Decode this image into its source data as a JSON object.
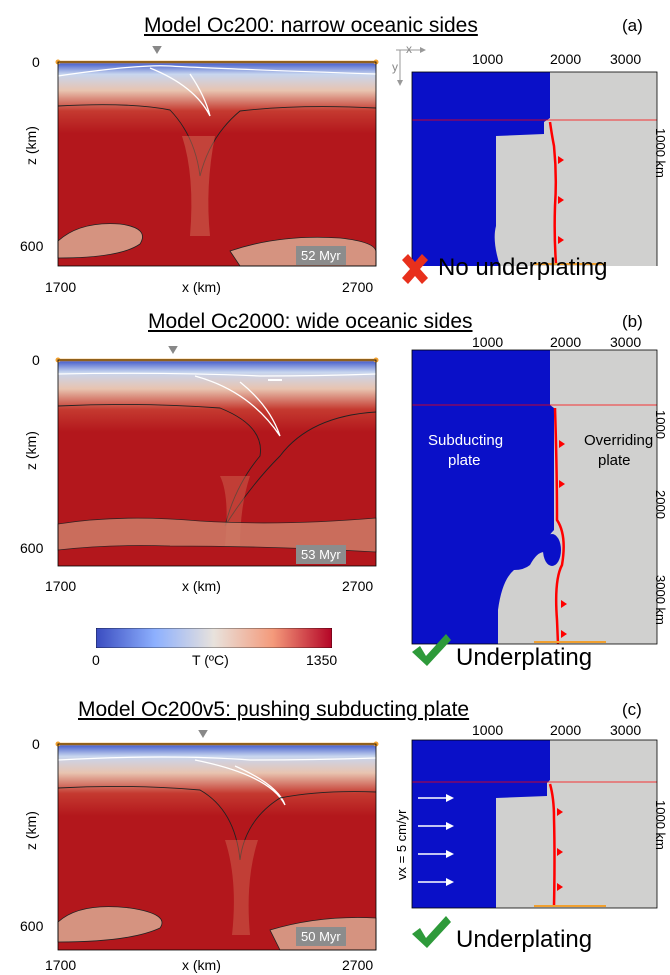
{
  "panel_a": {
    "title": "Model Oc200: narrow oceanic sides",
    "letter": "(a)",
    "time": "52 Myr",
    "verdict": "No underplating",
    "verdict_icon": "red-cross-icon"
  },
  "panel_b": {
    "title": "Model Oc2000: wide oceanic sides",
    "letter": "(b)",
    "time": "53 Myr",
    "verdict": "Underplating",
    "verdict_icon": "green-check-icon",
    "subducting_label_1": "Subducting",
    "subducting_label_2": "plate",
    "overriding_label_1": "Overriding",
    "overriding_label_2": "plate"
  },
  "panel_c": {
    "title": "Model Oc200v5: pushing subducting plate",
    "letter": "(c)",
    "time": "50 Myr",
    "verdict": "Underplating",
    "verdict_icon": "green-check-icon",
    "velocity_label": "vx = 5 cm/yr"
  },
  "axes": {
    "z_label": "z (km)",
    "x_label": "x (km)",
    "x_ticks": [
      "1700",
      "2700"
    ],
    "z_ticks": [
      "0",
      "600"
    ],
    "map_x_ticks": [
      "1000",
      "2000",
      "3000"
    ],
    "map_side_a": "1000 km",
    "map_side_b": [
      "1000",
      "2000",
      "3000 km"
    ],
    "map_side_c": "1000 km",
    "map_axis_x": "x",
    "map_axis_y": "y"
  },
  "colorbar": {
    "min": "0",
    "max": "1350",
    "label": "T (ºC)"
  },
  "colors": {
    "hot": "#b3171c",
    "cold": "#3b55c8",
    "blue_plate": "#0a10c8",
    "grey_plate": "#d0d0cf",
    "trench": "#ff0000",
    "orange": "#f0a030",
    "cross": "#e8301c",
    "check": "#2e9a3a"
  }
}
